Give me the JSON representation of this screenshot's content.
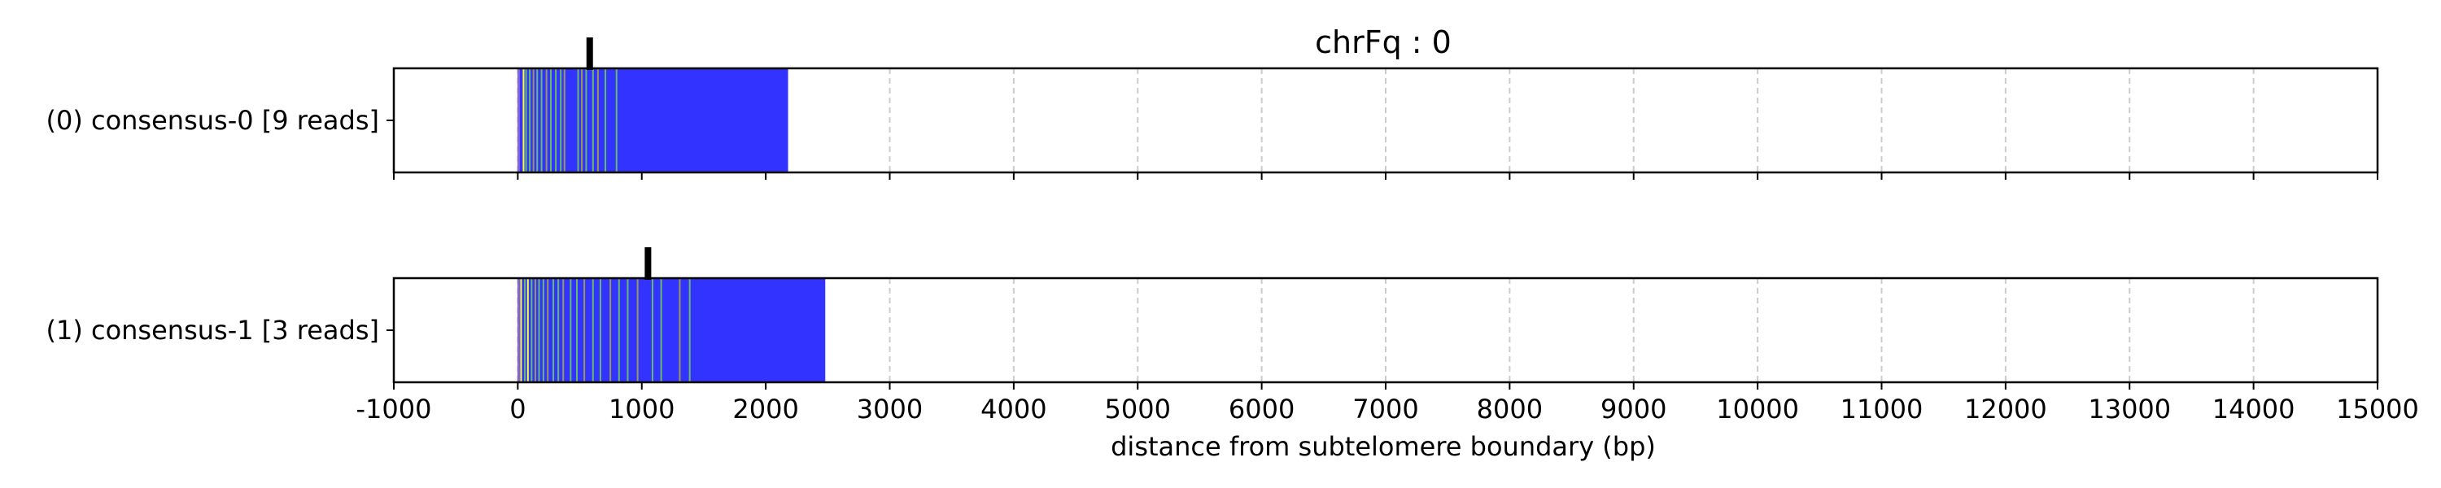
{
  "chart_data": {
    "type": "bar",
    "title": "chrFq : 0",
    "xlabel": "distance from subtelomere boundary (bp)",
    "xlim": [
      -1000,
      15000
    ],
    "xticks": [
      -1000,
      0,
      1000,
      2000,
      3000,
      4000,
      5000,
      6000,
      7000,
      8000,
      9000,
      10000,
      11000,
      12000,
      13000,
      14000,
      15000
    ],
    "xtick_labels": [
      "-1000",
      "0",
      "1000",
      "2000",
      "3000",
      "4000",
      "5000",
      "6000",
      "7000",
      "8000",
      "9000",
      "10000",
      "11000",
      "12000",
      "13000",
      "14000",
      "15000"
    ],
    "grid": "vertical dashed",
    "colors": {
      "repeat": "#3333ff",
      "variant_green": "#66bb66",
      "variant_olive": "#999955",
      "variant_yellow": "#ffff33",
      "marker": "#000000"
    },
    "tracks": [
      {
        "label": "(0) consensus-0 [9 reads]",
        "span": [
          0,
          2180
        ],
        "marker": 580,
        "variant_bands": [
          {
            "start": 40,
            "end": 52,
            "kind": "yellow"
          },
          {
            "start": 60,
            "end": 72,
            "kind": "green"
          },
          {
            "start": 90,
            "end": 100,
            "kind": "green"
          },
          {
            "start": 120,
            "end": 130,
            "kind": "olive"
          },
          {
            "start": 150,
            "end": 160,
            "kind": "green"
          },
          {
            "start": 185,
            "end": 195,
            "kind": "green"
          },
          {
            "start": 225,
            "end": 235,
            "kind": "olive"
          },
          {
            "start": 260,
            "end": 270,
            "kind": "green"
          },
          {
            "start": 300,
            "end": 310,
            "kind": "green"
          },
          {
            "start": 340,
            "end": 350,
            "kind": "green"
          },
          {
            "start": 370,
            "end": 380,
            "kind": "olive"
          },
          {
            "start": 480,
            "end": 490,
            "kind": "green"
          },
          {
            "start": 510,
            "end": 522,
            "kind": "olive"
          },
          {
            "start": 545,
            "end": 555,
            "kind": "green"
          },
          {
            "start": 600,
            "end": 610,
            "kind": "green"
          },
          {
            "start": 640,
            "end": 650,
            "kind": "olive"
          },
          {
            "start": 700,
            "end": 710,
            "kind": "green"
          },
          {
            "start": 790,
            "end": 800,
            "kind": "green"
          }
        ]
      },
      {
        "label": "(1) consensus-1 [3 reads]",
        "span": [
          0,
          2480
        ],
        "marker": 1050,
        "variant_bands": [
          {
            "start": 20,
            "end": 32,
            "kind": "yellow"
          },
          {
            "start": 50,
            "end": 60,
            "kind": "green"
          },
          {
            "start": 75,
            "end": 85,
            "kind": "yellow"
          },
          {
            "start": 105,
            "end": 115,
            "kind": "green"
          },
          {
            "start": 135,
            "end": 145,
            "kind": "olive"
          },
          {
            "start": 165,
            "end": 175,
            "kind": "green"
          },
          {
            "start": 200,
            "end": 210,
            "kind": "green"
          },
          {
            "start": 235,
            "end": 245,
            "kind": "olive"
          },
          {
            "start": 280,
            "end": 290,
            "kind": "green"
          },
          {
            "start": 320,
            "end": 330,
            "kind": "green"
          },
          {
            "start": 360,
            "end": 370,
            "kind": "olive"
          },
          {
            "start": 420,
            "end": 430,
            "kind": "green"
          },
          {
            "start": 470,
            "end": 480,
            "kind": "green"
          },
          {
            "start": 530,
            "end": 540,
            "kind": "olive"
          },
          {
            "start": 600,
            "end": 610,
            "kind": "green"
          },
          {
            "start": 660,
            "end": 670,
            "kind": "green"
          },
          {
            "start": 740,
            "end": 750,
            "kind": "olive"
          },
          {
            "start": 810,
            "end": 820,
            "kind": "green"
          },
          {
            "start": 880,
            "end": 890,
            "kind": "green"
          },
          {
            "start": 960,
            "end": 970,
            "kind": "olive"
          },
          {
            "start": 1080,
            "end": 1090,
            "kind": "green"
          },
          {
            "start": 1150,
            "end": 1160,
            "kind": "green"
          },
          {
            "start": 1300,
            "end": 1310,
            "kind": "olive"
          },
          {
            "start": 1380,
            "end": 1390,
            "kind": "green"
          }
        ]
      }
    ]
  }
}
